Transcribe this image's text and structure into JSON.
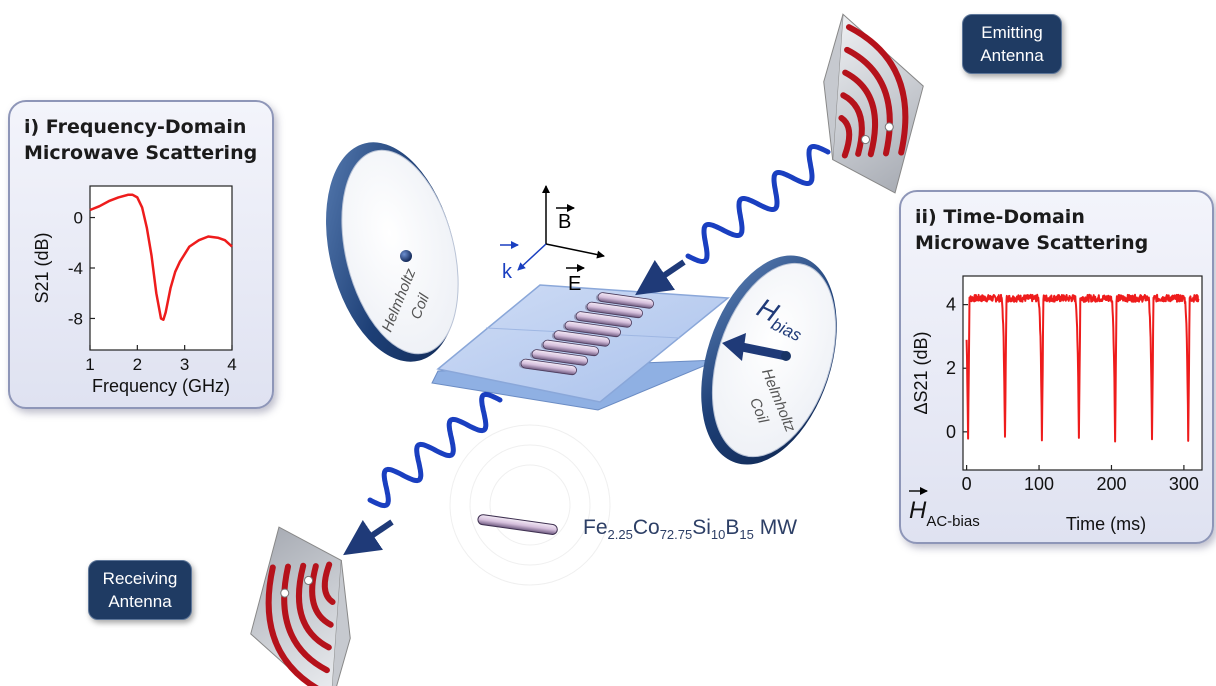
{
  "panel_i": {
    "title_line1": "i) Frequency-Domain",
    "title_line2": "Microwave Scattering",
    "chart_data": {
      "type": "line",
      "xlabel": "Frequency (GHz)",
      "ylabel": "S21 (dB)",
      "xlim": [
        1,
        4
      ],
      "ylim": [
        -10.5,
        2.5
      ],
      "x_ticks": [
        "1",
        "2",
        "3",
        "4"
      ],
      "y_ticks": [
        "0",
        "-4",
        "-8"
      ],
      "series": [
        {
          "color": "#ee1c1c",
          "x": [
            1.0,
            1.2,
            1.4,
            1.6,
            1.8,
            1.9,
            2.0,
            2.1,
            2.2,
            2.3,
            2.4,
            2.5,
            2.55,
            2.6,
            2.7,
            2.8,
            2.9,
            3.0,
            3.1,
            3.3,
            3.5,
            3.7,
            3.85,
            4.0
          ],
          "y": [
            0.6,
            0.9,
            1.3,
            1.6,
            1.8,
            1.8,
            1.6,
            0.8,
            -0.8,
            -3.0,
            -6.0,
            -8.0,
            -8.1,
            -7.5,
            -5.6,
            -4.3,
            -3.5,
            -2.9,
            -2.3,
            -1.8,
            -1.5,
            -1.6,
            -1.8,
            -2.3
          ]
        }
      ]
    }
  },
  "panel_ii": {
    "title_line1": "ii) Time-Domain",
    "title_line2": "Microwave Scattering",
    "chart_data": {
      "type": "line",
      "xlabel": "Time (ms)",
      "ylabel": "ΔS21 (dB)",
      "xlim": [
        -5,
        325
      ],
      "ylim": [
        -1.2,
        4.9
      ],
      "x_ticks": [
        "0",
        "100",
        "200",
        "300"
      ],
      "y_ticks": [
        "0",
        "2",
        "4"
      ],
      "dip_times_ms": [
        2,
        53,
        104,
        155,
        205,
        256,
        306
      ],
      "baseline_db": 4.2,
      "dip_min_db": -0.2,
      "series": [
        {
          "color": "#ee1c1c"
        }
      ]
    },
    "h_ac_label": "H",
    "h_ac_sub": "AC-bias"
  },
  "tags": {
    "emitting_line1": "Emitting",
    "emitting_line2": "Antenna",
    "receiving_line1": "Receiving",
    "receiving_line2": "Antenna"
  },
  "coils": {
    "left_line1": "Helmholtz",
    "left_line2": "Coil",
    "right_line1": "Helmholtz",
    "right_line2": "Coil",
    "hbias_main": "H",
    "hbias_sub": "bias"
  },
  "axes_triad": {
    "b": "B",
    "e": "E",
    "k": "k"
  },
  "legend": {
    "fe": "Fe",
    "fe_sub": "2.25",
    "co": "Co",
    "co_sub": "72.75",
    "si": "Si",
    "si_sub": "10",
    "b": "B",
    "b_sub": "15",
    "mw": " MW"
  },
  "colors": {
    "tag_bg": "#1f3b63",
    "wave_blue": "#1a3fc0",
    "arrow_navy": "#1f3a78",
    "trace_red": "#ee1c1c",
    "antenna_red": "#b5121b",
    "wire_lavender": "#d5bfdc",
    "panel_bg": "#e4e6f3"
  }
}
